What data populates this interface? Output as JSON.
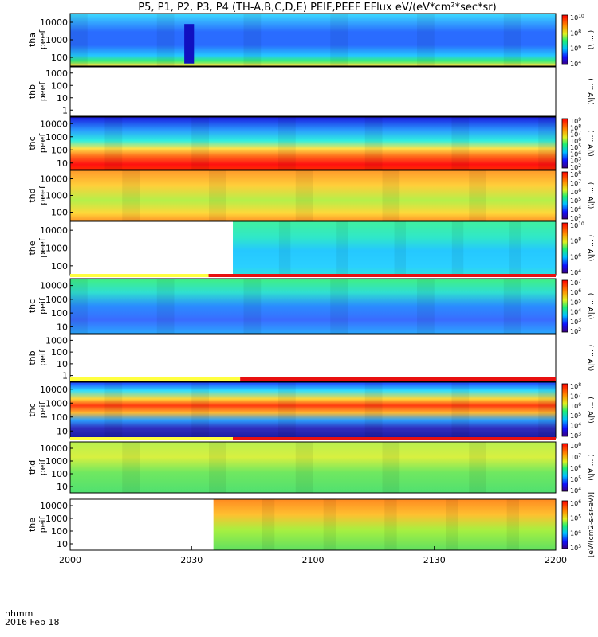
{
  "chart_data": {
    "type": "heatmap",
    "title": "P5, P1, P2, P3, P4 (TH-A,B,C,D,E) PEIF,PEEF EFlux eV/(eV*cm²*sec*sr)",
    "x_ticks": [
      "2000",
      "2030",
      "2100",
      "2130",
      "2200"
    ],
    "x_label_line1": "hhmm",
    "x_label_line2": "2016 Feb 18",
    "panels": [
      {
        "name": "tha peef",
        "label1": "tha",
        "label2": "peef",
        "yticks": [
          "10000",
          "1000",
          "100"
        ],
        "cbar_ticks": [
          "10",
          "8",
          "6",
          "4"
        ],
        "cbar_label": "(\\ ... )",
        "fill_start": 0.0,
        "bands": [
          [
            0.0,
            "#3ddcff"
          ],
          [
            0.35,
            "#2a6cff"
          ],
          [
            0.6,
            "#2a6cff"
          ],
          [
            0.8,
            "#25c8ff"
          ],
          [
            0.9,
            "#36f07a"
          ],
          [
            1.0,
            "#ffe040"
          ]
        ],
        "gap": {
          "from": 0.235,
          "to": 0.255,
          "color": "#1010c0"
        }
      },
      {
        "name": "thb peef",
        "label1": "thb",
        "label2": "peef",
        "yticks": [
          "1000",
          "100",
          "10",
          "1"
        ],
        "cbar_ticks": [],
        "cbar_label": "(\\|Ɐ ... )",
        "fill_start": 1.0,
        "bands": []
      },
      {
        "name": "thc peef",
        "label1": "thc",
        "label2": "peef",
        "yticks": [
          "10000",
          "1000",
          "100",
          "10"
        ],
        "cbar_ticks": [
          "9",
          "8",
          "7",
          "6",
          "5",
          "4",
          "3",
          "2"
        ],
        "cbar_label": "(\\|Ɐ ... )",
        "fill_start": 0.0,
        "bands": [
          [
            0.0,
            "#1a1adf"
          ],
          [
            0.25,
            "#2a9bff"
          ],
          [
            0.45,
            "#30f0e0"
          ],
          [
            0.6,
            "#ffe24a"
          ],
          [
            0.75,
            "#ff6a1a"
          ],
          [
            0.9,
            "#ff1010"
          ],
          [
            1.0,
            "#ff2a00"
          ]
        ]
      },
      {
        "name": "thd peef",
        "label1": "thd",
        "label2": "peef",
        "yticks": [
          "10000",
          "1000",
          "100"
        ],
        "cbar_ticks": [
          "8",
          "7",
          "6",
          "5",
          "4",
          "3"
        ],
        "cbar_label": "(\\|Ɐ ... )",
        "fill_start": 0.0,
        "bands": [
          [
            0.0,
            "#ff9a2a"
          ],
          [
            0.3,
            "#ffcf3a"
          ],
          [
            0.6,
            "#b5f04a"
          ],
          [
            0.85,
            "#ffd83a"
          ],
          [
            1.0,
            "#ff9a2a"
          ]
        ]
      },
      {
        "name": "the peef",
        "label1": "the",
        "label2": "peef",
        "yticks": [
          "10000",
          "1000",
          "100"
        ],
        "cbar_ticks": [
          "10",
          "8",
          "6",
          "4"
        ],
        "cbar_label": "(\\|Ɐ ... )",
        "fill_start": 0.335,
        "bands": [
          [
            0.0,
            "#40f0a0"
          ],
          [
            0.3,
            "#30e8c8"
          ],
          [
            0.55,
            "#25c8ff"
          ],
          [
            0.85,
            "#2ad0ff"
          ],
          [
            1.0,
            "#30e0e0"
          ]
        ]
      },
      {
        "name": "thc peif",
        "label1": "thc",
        "label2": "peif",
        "yticks": [
          "10000",
          "1000",
          "100",
          "10"
        ],
        "cbar_ticks": [
          "7",
          "6",
          "5",
          "4",
          "3",
          "2"
        ],
        "cbar_label": "(\\|Ɐ ... )",
        "fill_start": 0.0,
        "bands": [
          [
            0.0,
            "#40f080"
          ],
          [
            0.25,
            "#30e0d0"
          ],
          [
            0.5,
            "#2a8cff"
          ],
          [
            0.75,
            "#3a6cff"
          ],
          [
            1.0,
            "#2aa8ff"
          ]
        ],
        "bar": {
          "split": 0.285,
          "left": "#ffff40",
          "right": "#e81010"
        }
      },
      {
        "name": "thb peif",
        "label1": "thb",
        "label2": "peif",
        "yticks": [
          "1000",
          "100",
          "10",
          "1"
        ],
        "cbar_ticks": [],
        "cbar_label": "(\\|Ɐ ... )",
        "fill_start": 1.0,
        "bands": []
      },
      {
        "name": "thc peif 2",
        "label1": "thc",
        "label2": "peif",
        "yticks": [
          "10000",
          "1000",
          "100",
          "10"
        ],
        "cbar_ticks": [
          "8",
          "7",
          "6",
          "5",
          "4",
          "3"
        ],
        "cbar_label": "(\\|Ɐ ... )",
        "fill_start": 0.0,
        "bands": [
          [
            0.0,
            "#2040ff"
          ],
          [
            0.15,
            "#30e0ff"
          ],
          [
            0.3,
            "#ffd83a"
          ],
          [
            0.42,
            "#ff3a10"
          ],
          [
            0.55,
            "#ffb830"
          ],
          [
            0.68,
            "#2aa0ff"
          ],
          [
            0.82,
            "#3030c0"
          ],
          [
            1.0,
            "#1a1aa0"
          ]
        ],
        "bar": {
          "split": 0.35,
          "left": "#ffff40",
          "right": "#e81010"
        }
      },
      {
        "name": "thd peif",
        "label1": "thd",
        "label2": "peif",
        "yticks": [
          "10000",
          "1000",
          "100",
          "10"
        ],
        "cbar_ticks": [
          "8",
          "7",
          "6",
          "5",
          "4"
        ],
        "cbar_label": "(\\|Ɐ ... )",
        "fill_start": 0.0,
        "bands": [
          [
            0.0,
            "#b8f050"
          ],
          [
            0.3,
            "#d8f040"
          ],
          [
            0.6,
            "#70e860"
          ],
          [
            1.0,
            "#50e070"
          ]
        ],
        "bar": {
          "split": 0.335,
          "left": "#ffff40",
          "right": "#e81010"
        }
      },
      {
        "name": "the peif",
        "label1": "the",
        "label2": "peif",
        "yticks": [
          "10000",
          "1000",
          "100",
          "10"
        ],
        "cbar_ticks": [
          "6",
          "5",
          "4",
          "3"
        ],
        "cbar_label": "[eV/(cm2-s-sr-eV)]",
        "fill_start": 0.295,
        "bands": [
          [
            0.0,
            "#ff8a20"
          ],
          [
            0.3,
            "#ffc030"
          ],
          [
            0.6,
            "#a8f040"
          ],
          [
            1.0,
            "#60e060"
          ]
        ]
      }
    ]
  }
}
